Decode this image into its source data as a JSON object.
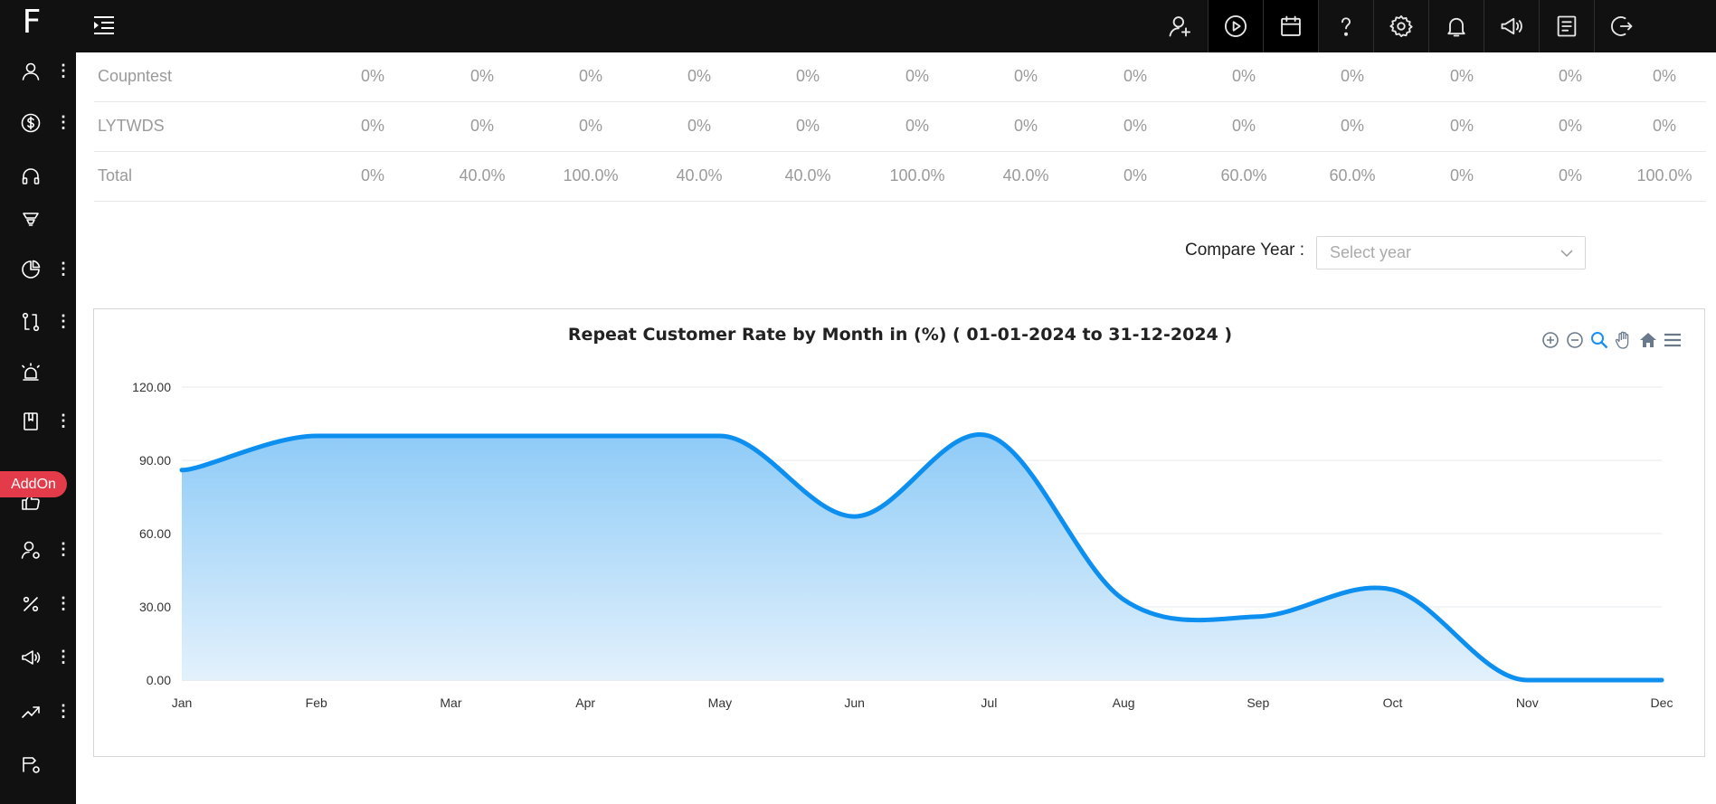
{
  "app": {
    "logo_text": "F"
  },
  "sidebar": {
    "items": [
      {
        "icon": "user-icon",
        "has_menu": true
      },
      {
        "icon": "dollar-icon",
        "has_menu": true
      },
      {
        "icon": "headphones-icon",
        "has_menu": false
      },
      {
        "icon": "funnel-icon",
        "has_menu": false
      },
      {
        "icon": "pie-chart-icon",
        "has_menu": true
      },
      {
        "icon": "git-compare-icon",
        "has_menu": true
      },
      {
        "icon": "alarm-icon",
        "has_menu": false
      },
      {
        "icon": "book-icon",
        "has_menu": true
      },
      {
        "icon": "thumbs-up-icon",
        "has_menu": false
      },
      {
        "icon": "user-settings-icon",
        "has_menu": true
      },
      {
        "icon": "percent-icon",
        "has_menu": true
      },
      {
        "icon": "megaphone-icon",
        "has_menu": true
      },
      {
        "icon": "trending-up-icon",
        "has_menu": true
      },
      {
        "icon": "route-icon",
        "has_menu": false
      }
    ],
    "addon_label": "AddOn",
    "menu_glyph": "⋮"
  },
  "topbar": {
    "icons": [
      "add-user-icon",
      "play-circle-icon",
      "calendar-icon",
      "help-icon",
      "settings-icon",
      "bell-icon",
      "megaphone-icon",
      "list-icon",
      "logout-icon"
    ]
  },
  "table": {
    "rows": [
      {
        "label": "Coupntest",
        "values": [
          "0%",
          "0%",
          "0%",
          "0%",
          "0%",
          "0%",
          "0%",
          "0%",
          "0%",
          "0%",
          "0%",
          "0%",
          "0%"
        ]
      },
      {
        "label": "LYTWDS",
        "values": [
          "0%",
          "0%",
          "0%",
          "0%",
          "0%",
          "0%",
          "0%",
          "0%",
          "0%",
          "0%",
          "0%",
          "0%",
          "0%"
        ]
      },
      {
        "label": "Total",
        "values": [
          "0%",
          "40.0%",
          "100.0%",
          "40.0%",
          "40.0%",
          "100.0%",
          "40.0%",
          "0%",
          "60.0%",
          "60.0%",
          "0%",
          "0%",
          "100.0%"
        ]
      }
    ]
  },
  "compare": {
    "label": "Compare Year :",
    "placeholder": "Select year"
  },
  "chart_data": {
    "type": "area",
    "title": "Repeat Customer Rate by Month in (%) ( 01-01-2024 to 31-12-2024 )",
    "categories": [
      "Jan",
      "Feb",
      "Mar",
      "Apr",
      "May",
      "Jun",
      "Jul",
      "Aug",
      "Sep",
      "Oct",
      "Nov",
      "Dec"
    ],
    "series": [
      {
        "values": [
          86,
          100,
          100,
          100,
          100,
          67,
          100,
          33,
          26,
          37,
          0,
          0
        ]
      }
    ],
    "yticks": [
      "0.00",
      "30.00",
      "60.00",
      "90.00",
      "120.00"
    ],
    "ylim": [
      0,
      120
    ],
    "grid": true,
    "color": "#0d8ff0",
    "fill_top": "#8ecbf7",
    "fill_bottom": "#e3f1fc",
    "toolbar_icons": [
      "zoom-in-icon",
      "zoom-out-icon",
      "magnifier-icon",
      "pan-hand-icon",
      "home-icon",
      "hamburger-icon"
    ]
  }
}
